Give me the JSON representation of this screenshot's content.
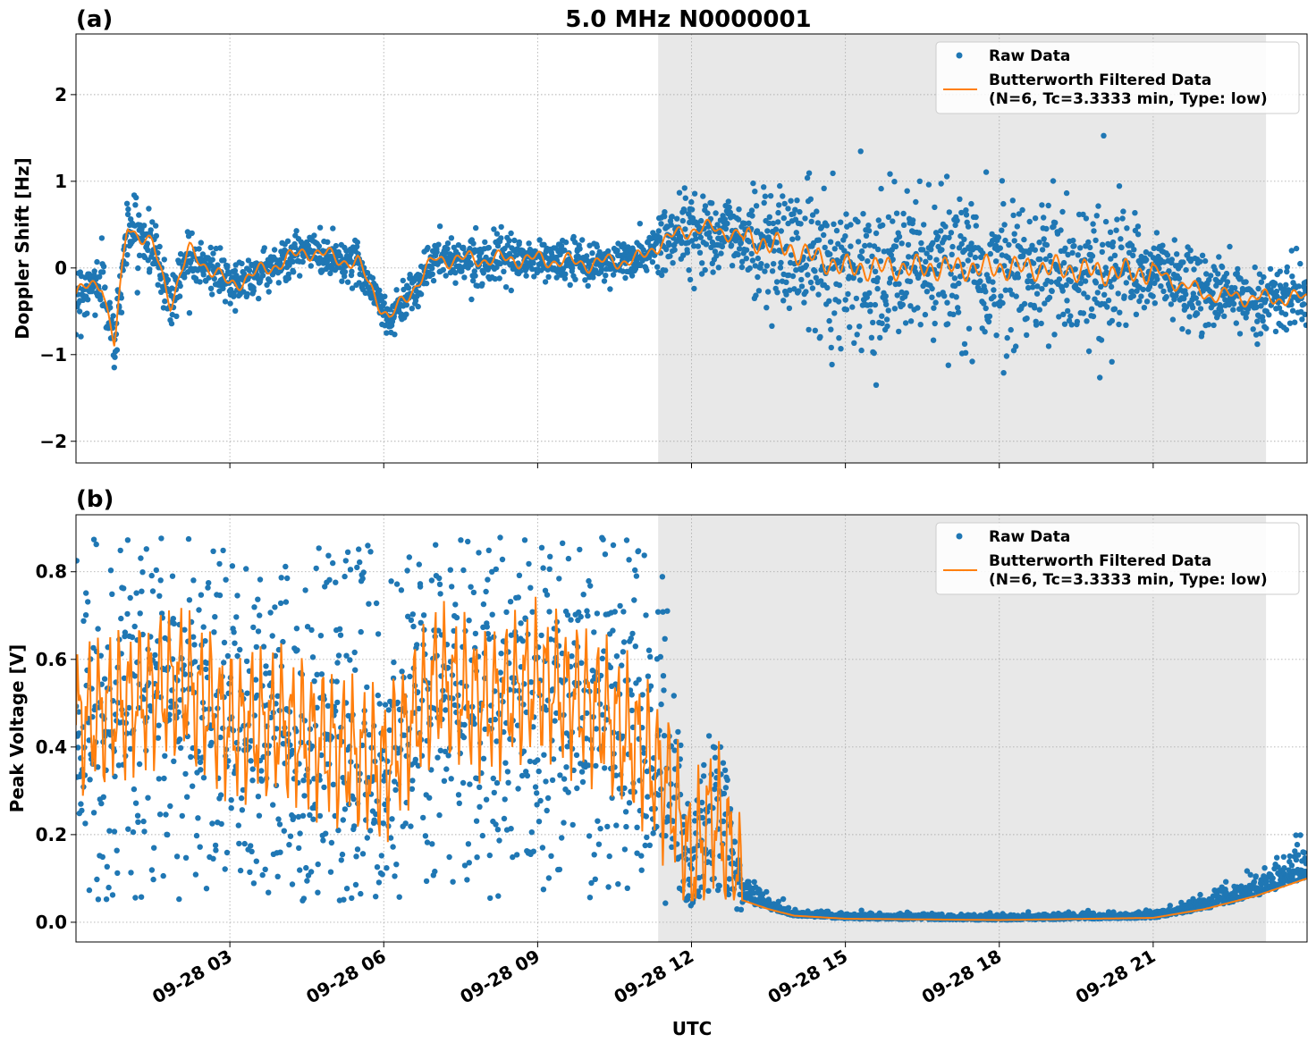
{
  "figure": {
    "title": "5.0 MHz N0000001",
    "xlabel": "UTC",
    "colors": {
      "raw": "#1f77b4",
      "filtered": "#ff7f0e",
      "shade": "#e8e8e8"
    }
  },
  "chart_data": [
    {
      "type": "scatter",
      "panel": "(a)",
      "ylabel": "Doppler Shift [Hz]",
      "xlim": [
        0.0,
        24.0
      ],
      "ylim": [
        -2.25,
        2.7
      ],
      "yticks": [
        -2,
        -1,
        0,
        1,
        2
      ],
      "ytick_labels": [
        "−2",
        "−1",
        "0",
        "1",
        "2"
      ],
      "xticks": [
        3,
        6,
        9,
        12,
        15,
        18,
        21
      ],
      "xtick_labels": [
        "09-28 03",
        "09-28 06",
        "09-28 09",
        "09-28 12",
        "09-28 15",
        "09-28 18",
        "09-28 21"
      ],
      "shaded_region": [
        11.35,
        23.2
      ],
      "grid": true,
      "legend_placement": "top-right",
      "series": [
        {
          "name": "Raw Data",
          "kind": "points",
          "spread": "varies with time (approx. ±0.15 Hz early, ±1.5 Hz at 15–20 UTC)",
          "x": [
            0.0,
            0.5,
            0.75,
            1.0,
            1.5,
            1.85,
            2.2,
            3.0,
            4.5,
            5.5,
            6.1,
            7.0,
            8.0,
            9.0,
            10.0,
            11.0,
            11.4,
            12.0,
            12.5,
            13.0,
            14.0,
            15.0,
            16.0,
            17.0,
            18.0,
            19.0,
            20.0,
            21.0,
            22.0,
            23.0,
            24.0
          ],
          "y": [
            -0.3,
            -0.15,
            -0.9,
            0.5,
            0.25,
            -0.4,
            0.2,
            -0.2,
            0.2,
            0.05,
            -0.6,
            0.1,
            0.1,
            0.1,
            0.05,
            0.1,
            0.3,
            0.45,
            0.45,
            0.35,
            0.2,
            0.0,
            0.0,
            0.0,
            0.0,
            0.0,
            -0.05,
            -0.05,
            -0.3,
            -0.35,
            -0.35
          ]
        },
        {
          "name": "Butterworth Filtered Data\n(N=6, Tc=3.3333 min, Type: low)",
          "kind": "line",
          "x": [
            0.0,
            0.5,
            0.75,
            1.0,
            1.5,
            1.85,
            2.2,
            3.0,
            4.5,
            5.5,
            6.1,
            7.0,
            8.0,
            9.0,
            10.0,
            11.0,
            11.4,
            12.0,
            12.5,
            13.0,
            14.0,
            15.0,
            16.0,
            17.0,
            18.0,
            19.0,
            20.0,
            21.0,
            22.0,
            23.0,
            24.0
          ],
          "y": [
            -0.3,
            -0.15,
            -0.9,
            0.5,
            0.25,
            -0.4,
            0.2,
            -0.2,
            0.2,
            0.05,
            -0.6,
            0.1,
            0.1,
            0.1,
            0.05,
            0.1,
            0.3,
            0.45,
            0.45,
            0.35,
            0.2,
            0.0,
            0.0,
            0.0,
            0.0,
            0.0,
            -0.05,
            -0.05,
            -0.3,
            -0.35,
            -0.35
          ]
        }
      ]
    },
    {
      "type": "scatter",
      "panel": "(b)",
      "ylabel": "Peak Voltage [V]",
      "xlim": [
        0.0,
        24.0
      ],
      "ylim": [
        -0.045,
        0.93
      ],
      "yticks": [
        0.0,
        0.2,
        0.4,
        0.6,
        0.8
      ],
      "ytick_labels": [
        "0.0",
        "0.2",
        "0.4",
        "0.6",
        "0.8"
      ],
      "xticks": [
        3,
        6,
        9,
        12,
        15,
        18,
        21
      ],
      "xtick_labels": [
        "09-28 03",
        "09-28 06",
        "09-28 09",
        "09-28 12",
        "09-28 15",
        "09-28 18",
        "09-28 21"
      ],
      "shaded_region": [
        11.35,
        23.2
      ],
      "grid": true,
      "legend_placement": "top-right",
      "series": [
        {
          "name": "Raw Data",
          "kind": "points",
          "spread": "wide (0.05–0.88 V) before 11:30 UTC, near 0 from 14 to 21 UTC",
          "x": [
            0.0,
            1.0,
            2.0,
            3.0,
            4.0,
            5.0,
            6.0,
            7.0,
            8.0,
            9.0,
            10.0,
            11.0,
            11.6,
            12.0,
            12.4,
            12.7,
            13.0,
            13.5,
            14.0,
            15.0,
            18.0,
            21.0,
            22.0,
            23.0,
            24.0
          ],
          "y": [
            0.45,
            0.5,
            0.55,
            0.45,
            0.45,
            0.4,
            0.35,
            0.55,
            0.5,
            0.55,
            0.5,
            0.4,
            0.3,
            0.12,
            0.25,
            0.18,
            0.05,
            0.03,
            0.015,
            0.008,
            0.005,
            0.01,
            0.03,
            0.06,
            0.1
          ]
        },
        {
          "name": "Butterworth Filtered Data\n(N=6, Tc=3.3333 min, Type: low)",
          "kind": "line",
          "x": [
            0.0,
            1.0,
            2.0,
            3.0,
            4.0,
            5.0,
            6.0,
            7.0,
            8.0,
            9.0,
            10.0,
            11.0,
            11.6,
            12.0,
            12.4,
            12.7,
            13.0,
            13.5,
            14.0,
            15.0,
            18.0,
            21.0,
            22.0,
            23.0,
            24.0
          ],
          "y": [
            0.45,
            0.5,
            0.55,
            0.45,
            0.45,
            0.4,
            0.35,
            0.55,
            0.5,
            0.55,
            0.5,
            0.4,
            0.3,
            0.12,
            0.25,
            0.18,
            0.05,
            0.03,
            0.015,
            0.008,
            0.005,
            0.01,
            0.03,
            0.06,
            0.1
          ]
        }
      ]
    }
  ]
}
